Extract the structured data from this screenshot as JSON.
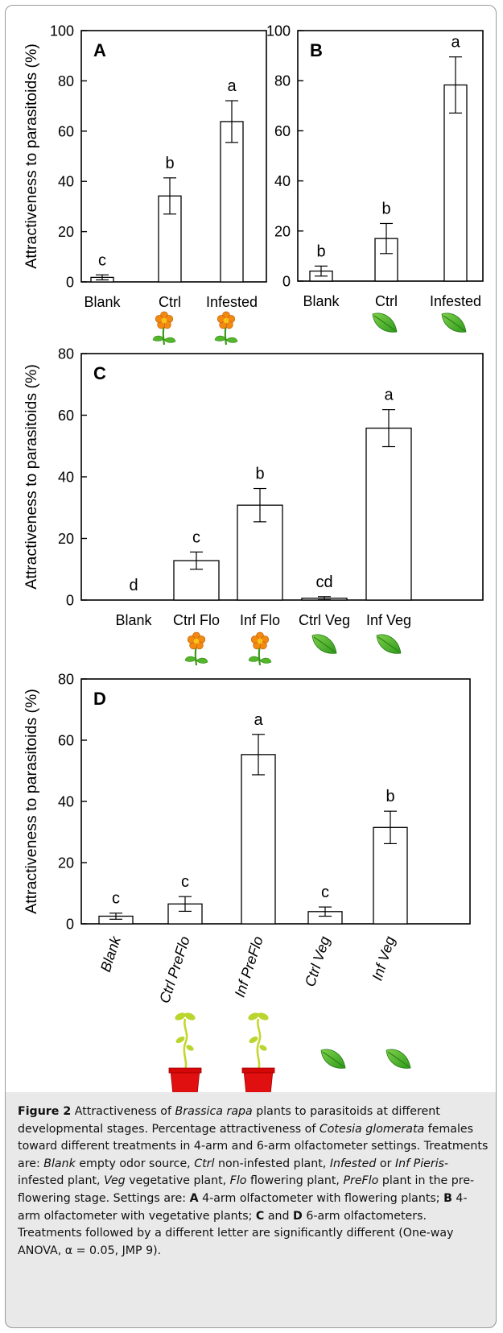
{
  "chart_data": [
    {
      "type": "bar",
      "panel": "A",
      "ylabel": "Attractiveness to parasitoids (%)",
      "ylim": [
        0,
        100
      ],
      "yticks": [
        0,
        20,
        40,
        60,
        80,
        100
      ],
      "categories": [
        "Blank",
        "Ctrl",
        "Infested"
      ],
      "values": [
        1.8,
        34.2,
        63.8
      ],
      "errors": [
        1.0,
        7.2,
        8.3
      ],
      "letters": [
        "c",
        "b",
        "a"
      ],
      "icons": [
        "",
        "flower-icon",
        "flower-icon"
      ],
      "label_style": "horizontal"
    },
    {
      "type": "bar",
      "panel": "B",
      "ylabel": "",
      "ylim": [
        0,
        100
      ],
      "yticks": [
        0,
        20,
        40,
        60,
        80,
        100
      ],
      "categories": [
        "Blank",
        "Ctrl",
        "Infested"
      ],
      "values": [
        4.0,
        17.0,
        78.3
      ],
      "errors": [
        2.0,
        6.0,
        11.2
      ],
      "letters": [
        "b",
        "b",
        "a"
      ],
      "icons": [
        "",
        "leaf-icon",
        "leaf-icon"
      ],
      "label_style": "horizontal"
    },
    {
      "type": "bar",
      "panel": "C",
      "ylabel": "Attractiveness to parasitoids (%)",
      "ylim": [
        0,
        80
      ],
      "yticks": [
        0,
        20,
        40,
        60,
        80
      ],
      "categories": [
        "Blank",
        "Ctrl Flo",
        "Inf Flo",
        "Ctrl Veg",
        "Inf Veg"
      ],
      "values": [
        0,
        12.8,
        30.8,
        0.6,
        55.8
      ],
      "errors": [
        0,
        2.8,
        5.4,
        0.5,
        6.0
      ],
      "letters": [
        "d",
        "c",
        "b",
        "cd",
        "a"
      ],
      "icons": [
        "",
        "flower-icon",
        "flower-icon",
        "leaf-icon",
        "leaf-icon"
      ],
      "label_style": "horizontal"
    },
    {
      "type": "bar",
      "panel": "D",
      "ylabel": "Attractiveness to parasitoids (%)",
      "ylim": [
        0,
        80
      ],
      "yticks": [
        0,
        20,
        40,
        60,
        80
      ],
      "categories": [
        "Blank",
        "Ctrl PreFlo",
        "Inf PreFlo",
        "Ctrl Veg",
        "Inf Veg"
      ],
      "values": [
        2.5,
        6.5,
        55.3,
        4.0,
        31.5
      ],
      "errors": [
        1.0,
        2.4,
        6.6,
        1.5,
        5.3
      ],
      "letters": [
        "c",
        "c",
        "a",
        "c",
        "b"
      ],
      "icons": [
        "",
        "potted-seedling-icon",
        "potted-seedling-icon",
        "leaf-icon",
        "leaf-icon"
      ],
      "label_style": "italic-rotated"
    }
  ],
  "caption": {
    "figure_label": "Figure 2",
    "text_1": "  Attractiveness of ",
    "italic_1": "Brassica rapa",
    "text_2": " plants to parasitoids at different developmental stages. Percentage attractiveness of ",
    "italic_2": "Cotesia glomerata",
    "text_3": " females toward different treatments in 4-arm and 6-arm olfactometer settings. Treatments are: ",
    "italic_3": "Blank",
    "text_4": " empty odor source, ",
    "italic_4": "Ctrl",
    "text_5": " non-infested plant, ",
    "italic_5": "Infested",
    "text_6": " or ",
    "italic_6": "Inf Pieris",
    "text_7": "-infested plant, ",
    "italic_7": "Veg",
    "text_8": " vegetative plant, ",
    "italic_8": "Flo",
    "text_9": " flowering plant, ",
    "italic_9": "PreFlo",
    "text_10": " plant in the pre-flowering stage. Settings are: ",
    "bold_a": "A",
    "text_11": " 4-arm olfactometer with flowering plants; ",
    "bold_b": "B",
    "text_12": " 4-arm olfactometer with vegetative plants; ",
    "bold_c": "C",
    "text_13": " and ",
    "bold_d": "D",
    "text_14": " 6-arm olfactometers. Treatments followed by a different letter are significantly different (One-way ANOVA, α = 0.05, JMP 9)."
  }
}
